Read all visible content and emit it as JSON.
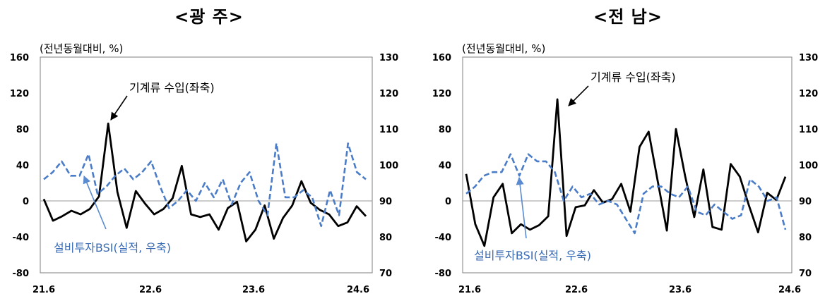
{
  "chart_data": [
    {
      "type": "line",
      "title": "<광 주>",
      "unit_label": "(전년동월대비, %)",
      "x_tick_labels": [
        "21.6",
        "22.6",
        "23.6",
        "24.6"
      ],
      "y_left": {
        "min": -80,
        "max": 160,
        "ticks": [
          -80,
          -40,
          0,
          40,
          80,
          120,
          160
        ]
      },
      "y_right": {
        "min": 70,
        "max": 130,
        "ticks": [
          70,
          80,
          90,
          100,
          110,
          120,
          130
        ]
      },
      "grid": false,
      "annotations": {
        "machinery": "기계류 수입(좌축)",
        "bsi": "설비투자BSI(실적, 우축)"
      },
      "series": [
        {
          "label": "기계류 수입(좌축)",
          "axis": "left",
          "style": "solid",
          "color": "#000000",
          "values": [
            2,
            -22,
            -17,
            -11,
            -15,
            -9,
            5,
            86,
            10,
            -30,
            11,
            -3,
            -15,
            -9,
            3,
            39,
            -15,
            -18,
            -15,
            -32,
            -8,
            -1,
            -45,
            -32,
            -5,
            -42,
            -19,
            -5,
            22,
            -2,
            -10,
            -15,
            -28,
            -24,
            -6,
            -17
          ]
        },
        {
          "label": "설비투자BSI(실적, 우축)",
          "axis": "right",
          "style": "dashed",
          "color": "#4a7cc7",
          "values": [
            96,
            98,
            101,
            97,
            97,
            103,
            92,
            94,
            97,
            99,
            96,
            98,
            101,
            94,
            88,
            90,
            93,
            90,
            95,
            91,
            96,
            89,
            95,
            98,
            90,
            86,
            106,
            91,
            91,
            93,
            91,
            83,
            93,
            86,
            106,
            98,
            96
          ]
        }
      ]
    },
    {
      "type": "line",
      "title": "<전 남>",
      "unit_label": "(전년동월대비, %)",
      "x_tick_labels": [
        "21.6",
        "22.6",
        "23.6",
        "24.6"
      ],
      "y_left": {
        "min": -80,
        "max": 160,
        "ticks": [
          -80,
          -40,
          0,
          40,
          80,
          120,
          160
        ]
      },
      "y_right": {
        "min": 70,
        "max": 130,
        "ticks": [
          70,
          80,
          90,
          100,
          110,
          120,
          130
        ]
      },
      "grid": false,
      "annotations": {
        "machinery": "기계류 수입(좌축)",
        "bsi": "설비투자BSI(실적, 우축)"
      },
      "series": [
        {
          "label": "기계류 수입(좌축)",
          "axis": "left",
          "style": "solid",
          "color": "#000000",
          "values": [
            30,
            -26,
            -50,
            4,
            19,
            -36,
            -26,
            -32,
            -27,
            -17,
            113,
            -39,
            -7,
            -5,
            12,
            -2,
            2,
            19,
            -12,
            60,
            77,
            22,
            -33,
            80,
            28,
            -18,
            35,
            -29,
            -32,
            41,
            27,
            -5,
            -35,
            9,
            1,
            27
          ]
        },
        {
          "label": "설비투자BSI(실적, 우축)",
          "axis": "right",
          "style": "dashed",
          "color": "#4a7cc7",
          "values": [
            92,
            94,
            97,
            98,
            98,
            103,
            97,
            103,
            101,
            101,
            98,
            90,
            94,
            91,
            92,
            89,
            90,
            89,
            85,
            81,
            92,
            94,
            94,
            92,
            91,
            94,
            87,
            86,
            89,
            87,
            85,
            86,
            96,
            94,
            90,
            91,
            82
          ]
        }
      ]
    }
  ]
}
